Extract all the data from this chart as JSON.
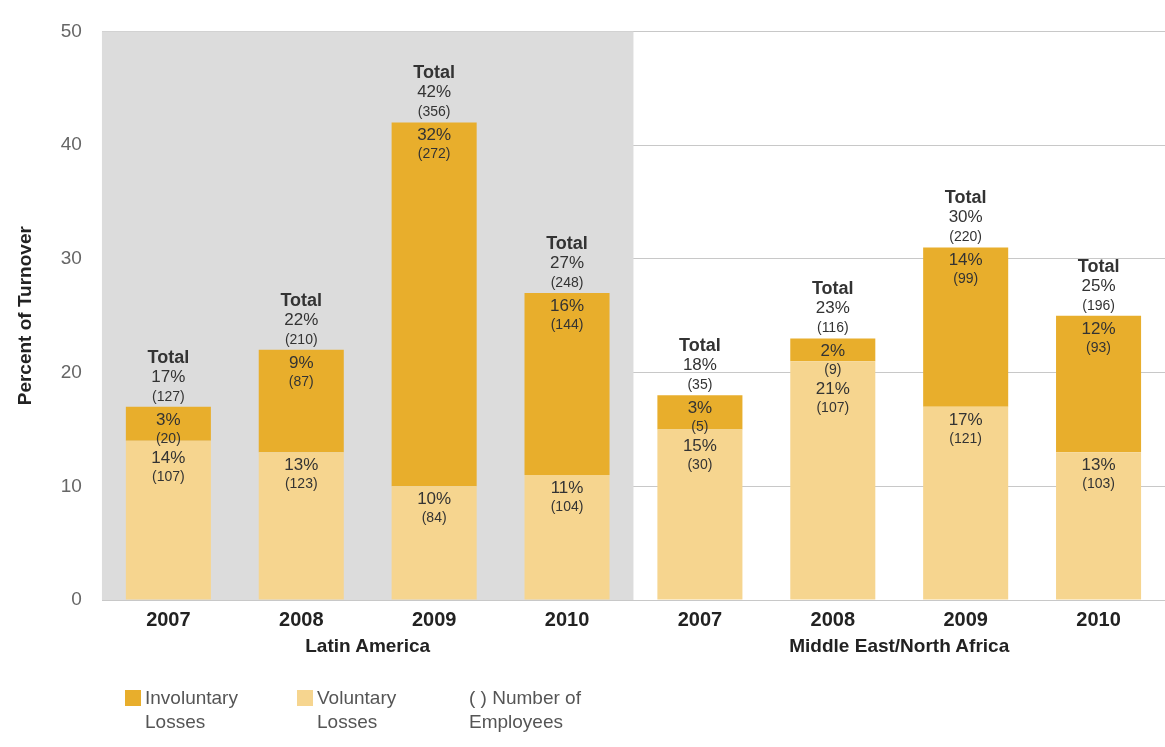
{
  "chart_data": {
    "type": "bar",
    "stacked": true,
    "ylabel": "Percent of Turnover",
    "categories": [
      "2007",
      "2008",
      "2009",
      "2010",
      "2007",
      "2008",
      "2009",
      "2010"
    ],
    "series": [
      {
        "name": "Voluntary Losses",
        "color": "#f6d58f",
        "values": [
          14,
          13,
          10,
          11,
          15,
          21,
          17,
          13
        ],
        "value_labels": [
          "14%\n(107)",
          "13%\n(123)",
          "10%\n(84)",
          "11%\n(104)",
          "15%\n(30)",
          "21%\n(107)",
          "17%\n(121)",
          "13%\n(103)"
        ]
      },
      {
        "name": "Involuntary Losses",
        "color": "#e8ae2c",
        "values": [
          3,
          9,
          32,
          16,
          3,
          2,
          14,
          12
        ],
        "value_labels": [
          "3%\n(20)",
          "9%\n(87)",
          "32%\n(272)",
          "16%\n(144)",
          "3%\n(5)",
          "2%\n(9)",
          "14%\n(99)",
          "12%\n(93)"
        ]
      }
    ],
    "totals": [
      "Total\n17%\n(127)",
      "Total\n22%\n(210)",
      "Total\n42%\n(356)",
      "Total\n27%\n(248)",
      "Total\n18%\n(35)",
      "Total\n23%\n(116)",
      "Total\n30%\n(220)",
      "Total\n25%\n(196)"
    ],
    "ylim": [
      0,
      50
    ],
    "yticks": [
      0,
      10,
      20,
      30,
      40,
      50
    ],
    "grid": "y",
    "bands": [
      {
        "axis": "x",
        "from": "2007",
        "to": "2010",
        "color": "#dcdcdc"
      }
    ],
    "legend": "bottom left",
    "annotations": [
      "Latin America",
      "Middle East/North Africa",
      "( )  Number of Employees"
    ]
  }
}
